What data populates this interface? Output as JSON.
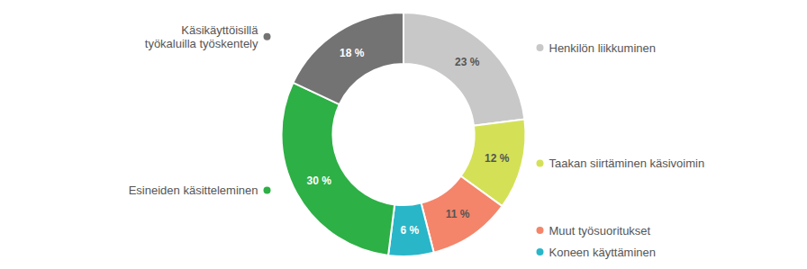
{
  "chart_data": {
    "type": "donut",
    "categories": [
      "Henkilön liikkuminen",
      "Taakan siirtäminen käsivoimin",
      "Muut työsuoritukset",
      "Koneen käyttäminen",
      "Esineiden käsitteleminen",
      "Käsikäyttöisillä\ntyökaluilla työskentely"
    ],
    "values": [
      23,
      12,
      11,
      6,
      30,
      18
    ],
    "value_labels": [
      "23 %",
      "12 %",
      "11 %",
      "6 %",
      "30 %",
      "18 %"
    ],
    "colors": [
      "#c8c8c8",
      "#d4e157",
      "#f4856a",
      "#29b6c8",
      "#2db045",
      "#737373"
    ],
    "data_labels": true
  }
}
